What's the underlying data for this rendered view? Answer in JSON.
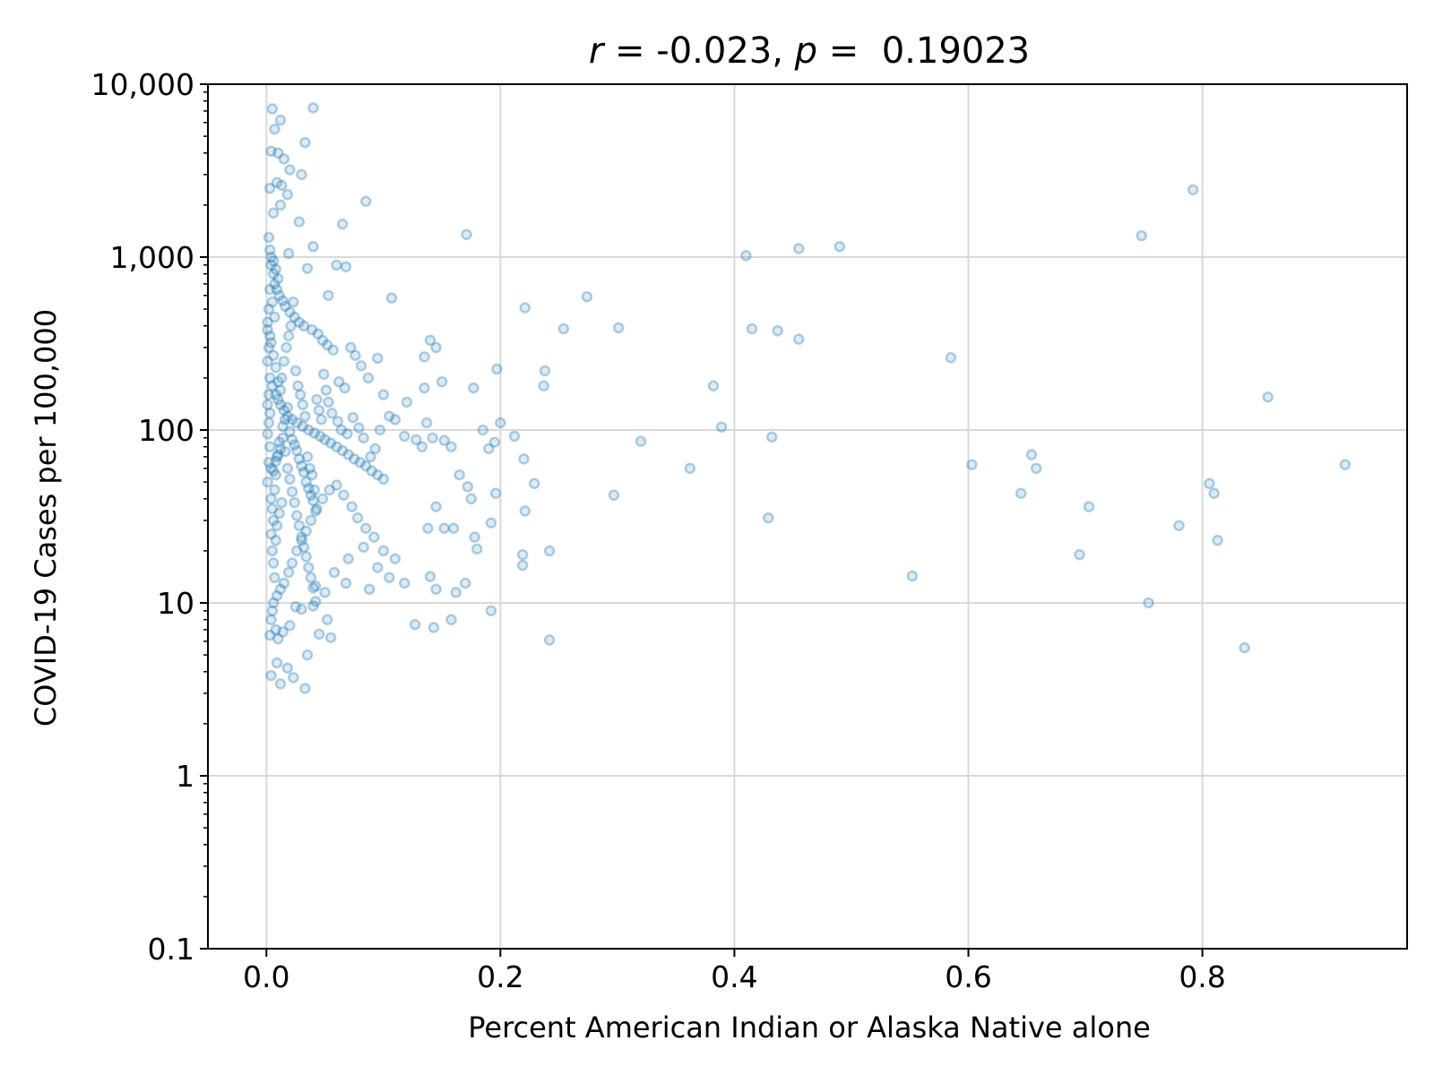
{
  "chart_data": {
    "type": "scatter",
    "title": "r = -0.023, p =  0.19023",
    "title_parts": {
      "r_symbol": "r",
      "r_text": " = -0.023, ",
      "p_symbol": "p",
      "p_text": " =  0.19023"
    },
    "xlabel": "Percent American Indian or Alaska Native alone",
    "ylabel": "COVID-19 Cases per 100,000",
    "xlim": [
      -0.05,
      0.975
    ],
    "ylim": [
      0.1,
      10000
    ],
    "yscale": "log",
    "grid": true,
    "x_ticks": [
      {
        "value": 0.0,
        "label": "0.0"
      },
      {
        "value": 0.2,
        "label": "0.2"
      },
      {
        "value": 0.4,
        "label": "0.4"
      },
      {
        "value": 0.6,
        "label": "0.6"
      },
      {
        "value": 0.8,
        "label": "0.8"
      }
    ],
    "y_ticks": [
      {
        "value": 0.1,
        "label": "0.1"
      },
      {
        "value": 1,
        "label": "1"
      },
      {
        "value": 10,
        "label": "10"
      },
      {
        "value": 100,
        "label": "100"
      },
      {
        "value": 1000,
        "label": "1,000"
      },
      {
        "value": 10000,
        "label": "10,000"
      }
    ],
    "color": "#1f77b4",
    "points": [
      [
        0.005,
        7200
      ],
      [
        0.04,
        7300
      ],
      [
        0.012,
        6200
      ],
      [
        0.033,
        4600
      ],
      [
        0.007,
        5500
      ],
      [
        0.004,
        4100
      ],
      [
        0.01,
        4000
      ],
      [
        0.015,
        3700
      ],
      [
        0.02,
        3200
      ],
      [
        0.03,
        3000
      ],
      [
        0.018,
        2300
      ],
      [
        0.009,
        2700
      ],
      [
        0.013,
        2600
      ],
      [
        0.085,
        2100
      ],
      [
        0.003,
        2500
      ],
      [
        0.012,
        2000
      ],
      [
        0.006,
        1800
      ],
      [
        0.065,
        1550
      ],
      [
        0.028,
        1600
      ],
      [
        0.04,
        1150
      ],
      [
        0.171,
        1350
      ],
      [
        0.792,
        2450
      ],
      [
        0.748,
        1330
      ],
      [
        0.41,
        1020
      ],
      [
        0.455,
        1120
      ],
      [
        0.49,
        1150
      ],
      [
        0.06,
        900
      ],
      [
        0.068,
        880
      ],
      [
        0.035,
        860
      ],
      [
        0.019,
        1050
      ],
      [
        0.107,
        580
      ],
      [
        0.221,
        510
      ],
      [
        0.274,
        590
      ],
      [
        0.053,
        600
      ],
      [
        0.004,
        900
      ],
      [
        0.006,
        800
      ],
      [
        0.007,
        700
      ],
      [
        0.009,
        650
      ],
      [
        0.011,
        600
      ],
      [
        0.014,
        560
      ],
      [
        0.016,
        520
      ],
      [
        0.02,
        480
      ],
      [
        0.024,
        450
      ],
      [
        0.028,
        420
      ],
      [
        0.032,
        400
      ],
      [
        0.039,
        380
      ],
      [
        0.044,
        360
      ],
      [
        0.048,
        330
      ],
      [
        0.052,
        310
      ],
      [
        0.057,
        290
      ],
      [
        0.254,
        385
      ],
      [
        0.301,
        390
      ],
      [
        0.415,
        385
      ],
      [
        0.437,
        375
      ],
      [
        0.455,
        335
      ],
      [
        0.14,
        330
      ],
      [
        0.145,
        300
      ],
      [
        0.135,
        265
      ],
      [
        0.095,
        260
      ],
      [
        0.585,
        262
      ],
      [
        0.197,
        225
      ],
      [
        0.238,
        220
      ],
      [
        0.382,
        180
      ],
      [
        0.237,
        180
      ],
      [
        0.856,
        155
      ],
      [
        0.072,
        300
      ],
      [
        0.076,
        270
      ],
      [
        0.081,
        235
      ],
      [
        0.087,
        200
      ],
      [
        0.062,
        190
      ],
      [
        0.067,
        175
      ],
      [
        0.1,
        160
      ],
      [
        0.12,
        145
      ],
      [
        0.135,
        175
      ],
      [
        0.15,
        190
      ],
      [
        0.177,
        175
      ],
      [
        0.005,
        180
      ],
      [
        0.008,
        160
      ],
      [
        0.01,
        150
      ],
      [
        0.012,
        140
      ],
      [
        0.015,
        130
      ],
      [
        0.018,
        120
      ],
      [
        0.022,
        115
      ],
      [
        0.026,
        110
      ],
      [
        0.031,
        105
      ],
      [
        0.036,
        100
      ],
      [
        0.041,
        96
      ],
      [
        0.046,
        92
      ],
      [
        0.05,
        88
      ],
      [
        0.055,
        84
      ],
      [
        0.06,
        80
      ],
      [
        0.065,
        76
      ],
      [
        0.07,
        72
      ],
      [
        0.075,
        68
      ],
      [
        0.08,
        65
      ],
      [
        0.085,
        62
      ],
      [
        0.09,
        58
      ],
      [
        0.095,
        55
      ],
      [
        0.1,
        52
      ],
      [
        0.105,
        120
      ],
      [
        0.11,
        115
      ],
      [
        0.118,
        92
      ],
      [
        0.128,
        88
      ],
      [
        0.133,
        80
      ],
      [
        0.137,
        110
      ],
      [
        0.142,
        90
      ],
      [
        0.152,
        87
      ],
      [
        0.158,
        80
      ],
      [
        0.185,
        100
      ],
      [
        0.19,
        78
      ],
      [
        0.195,
        85
      ],
      [
        0.2,
        110
      ],
      [
        0.212,
        92
      ],
      [
        0.22,
        68
      ],
      [
        0.229,
        49
      ],
      [
        0.389,
        104
      ],
      [
        0.32,
        86
      ],
      [
        0.432,
        91
      ],
      [
        0.362,
        60
      ],
      [
        0.297,
        42
      ],
      [
        0.603,
        63
      ],
      [
        0.654,
        72
      ],
      [
        0.658,
        60
      ],
      [
        0.645,
        43
      ],
      [
        0.922,
        63
      ],
      [
        0.806,
        49
      ],
      [
        0.81,
        43
      ],
      [
        0.703,
        36
      ],
      [
        0.78,
        28
      ],
      [
        0.813,
        23
      ],
      [
        0.695,
        19
      ],
      [
        0.552,
        14.3
      ],
      [
        0.429,
        31
      ],
      [
        0.754,
        10
      ],
      [
        0.836,
        5.5
      ],
      [
        0.242,
        20
      ],
      [
        0.219,
        19
      ],
      [
        0.219,
        16.5
      ],
      [
        0.192,
        29
      ],
      [
        0.221,
        34
      ],
      [
        0.196,
        43
      ],
      [
        0.175,
        40
      ],
      [
        0.172,
        47
      ],
      [
        0.165,
        55
      ],
      [
        0.145,
        36
      ],
      [
        0.138,
        27
      ],
      [
        0.152,
        27
      ],
      [
        0.16,
        27
      ],
      [
        0.178,
        24
      ],
      [
        0.18,
        20.5
      ],
      [
        0.14,
        14.2
      ],
      [
        0.145,
        12
      ],
      [
        0.118,
        13
      ],
      [
        0.162,
        11.5
      ],
      [
        0.17,
        13
      ],
      [
        0.192,
        9
      ],
      [
        0.158,
        8
      ],
      [
        0.127,
        7.5
      ],
      [
        0.143,
        7.2
      ],
      [
        0.242,
        6.1
      ],
      [
        0.11,
        18
      ],
      [
        0.1,
        20
      ],
      [
        0.092,
        24
      ],
      [
        0.085,
        27
      ],
      [
        0.078,
        31
      ],
      [
        0.073,
        36
      ],
      [
        0.066,
        42
      ],
      [
        0.06,
        48
      ],
      [
        0.054,
        45
      ],
      [
        0.048,
        40
      ],
      [
        0.043,
        35
      ],
      [
        0.038,
        30
      ],
      [
        0.034,
        26
      ],
      [
        0.03,
        23
      ],
      [
        0.026,
        20
      ],
      [
        0.022,
        17
      ],
      [
        0.019,
        15
      ],
      [
        0.015,
        13
      ],
      [
        0.012,
        12
      ],
      [
        0.009,
        11
      ],
      [
        0.006,
        10
      ],
      [
        0.005,
        9
      ],
      [
        0.004,
        8
      ],
      [
        0.008,
        7
      ],
      [
        0.003,
        6.5
      ],
      [
        0.01,
        6.2
      ],
      [
        0.014,
        6.8
      ],
      [
        0.02,
        7.4
      ],
      [
        0.025,
        9.5
      ],
      [
        0.03,
        9.2
      ],
      [
        0.04,
        9.6
      ],
      [
        0.042,
        12.5
      ],
      [
        0.05,
        11.5
      ],
      [
        0.045,
        6.6
      ],
      [
        0.055,
        6.3
      ],
      [
        0.035,
        5
      ],
      [
        0.018,
        4.2
      ],
      [
        0.009,
        4.5
      ],
      [
        0.004,
        3.8
      ],
      [
        0.012,
        3.4
      ],
      [
        0.023,
        3.7
      ],
      [
        0.033,
        3.2
      ],
      [
        0.052,
        8
      ],
      [
        0.058,
        15
      ],
      [
        0.07,
        18
      ],
      [
        0.083,
        21
      ],
      [
        0.095,
        16
      ],
      [
        0.105,
        14
      ],
      [
        0.088,
        12
      ],
      [
        0.068,
        13
      ],
      [
        0.001,
        50
      ],
      [
        0.002,
        65
      ],
      [
        0.003,
        80
      ],
      [
        0.001,
        95
      ],
      [
        0.002,
        110
      ],
      [
        0.003,
        125
      ],
      [
        0.001,
        140
      ],
      [
        0.002,
        160
      ],
      [
        0.003,
        200
      ],
      [
        0.001,
        250
      ],
      [
        0.002,
        300
      ],
      [
        0.003,
        350
      ],
      [
        0.001,
        420
      ],
      [
        0.002,
        500
      ],
      [
        0.004,
        40
      ],
      [
        0.005,
        35
      ],
      [
        0.006,
        30
      ],
      [
        0.004,
        25
      ],
      [
        0.005,
        20
      ],
      [
        0.006,
        17
      ],
      [
        0.007,
        14
      ],
      [
        0.008,
        23
      ],
      [
        0.009,
        28
      ],
      [
        0.011,
        33
      ],
      [
        0.013,
        38
      ],
      [
        0.007,
        45
      ],
      [
        0.008,
        55
      ],
      [
        0.009,
        70
      ],
      [
        0.011,
        85
      ],
      [
        0.013,
        200
      ],
      [
        0.015,
        250
      ],
      [
        0.017,
        300
      ],
      [
        0.019,
        350
      ],
      [
        0.021,
        400
      ],
      [
        0.023,
        550
      ],
      [
        0.025,
        220
      ],
      [
        0.027,
        180
      ],
      [
        0.029,
        160
      ],
      [
        0.031,
        140
      ],
      [
        0.033,
        120
      ],
      [
        0.035,
        70
      ],
      [
        0.037,
        60
      ],
      [
        0.039,
        55
      ],
      [
        0.041,
        45
      ],
      [
        0.043,
        150
      ],
      [
        0.045,
        130
      ],
      [
        0.047,
        115
      ],
      [
        0.049,
        210
      ],
      [
        0.051,
        170
      ],
      [
        0.053,
        145
      ],
      [
        0.056,
        125
      ],
      [
        0.061,
        112
      ],
      [
        0.064,
        100
      ],
      [
        0.069,
        95
      ],
      [
        0.074,
        118
      ],
      [
        0.079,
        103
      ],
      [
        0.083,
        90
      ],
      [
        0.089,
        70
      ],
      [
        0.093,
        78
      ],
      [
        0.097,
        100
      ],
      [
        0.002,
        1300
      ],
      [
        0.003,
        1100
      ],
      [
        0.004,
        1000
      ],
      [
        0.006,
        950
      ],
      [
        0.008,
        850
      ],
      [
        0.01,
        750
      ],
      [
        0.003,
        650
      ],
      [
        0.005,
        550
      ],
      [
        0.007,
        450
      ],
      [
        0.001,
        380
      ],
      [
        0.004,
        320
      ],
      [
        0.006,
        270
      ],
      [
        0.008,
        230
      ],
      [
        0.01,
        190
      ],
      [
        0.012,
        170
      ],
      [
        0.014,
        90
      ],
      [
        0.016,
        75
      ],
      [
        0.018,
        60
      ],
      [
        0.02,
        52
      ],
      [
        0.022,
        44
      ],
      [
        0.024,
        38
      ],
      [
        0.026,
        32
      ],
      [
        0.028,
        28
      ],
      [
        0.03,
        24
      ],
      [
        0.032,
        21
      ],
      [
        0.034,
        18.5
      ],
      [
        0.036,
        16
      ],
      [
        0.038,
        14
      ],
      [
        0.04,
        12.2
      ],
      [
        0.042,
        10.2
      ],
      [
        0.004,
        60
      ],
      [
        0.006,
        58
      ],
      [
        0.008,
        66
      ],
      [
        0.01,
        72
      ],
      [
        0.012,
        78
      ],
      [
        0.014,
        105
      ],
      [
        0.016,
        115
      ],
      [
        0.018,
        135
      ],
      [
        0.02,
        98
      ],
      [
        0.022,
        88
      ],
      [
        0.024,
        82
      ],
      [
        0.026,
        76
      ],
      [
        0.028,
        68
      ],
      [
        0.03,
        62
      ],
      [
        0.032,
        57
      ],
      [
        0.034,
        50
      ],
      [
        0.036,
        46
      ],
      [
        0.038,
        42
      ],
      [
        0.04,
        39
      ],
      [
        0.042,
        34
      ]
    ]
  }
}
